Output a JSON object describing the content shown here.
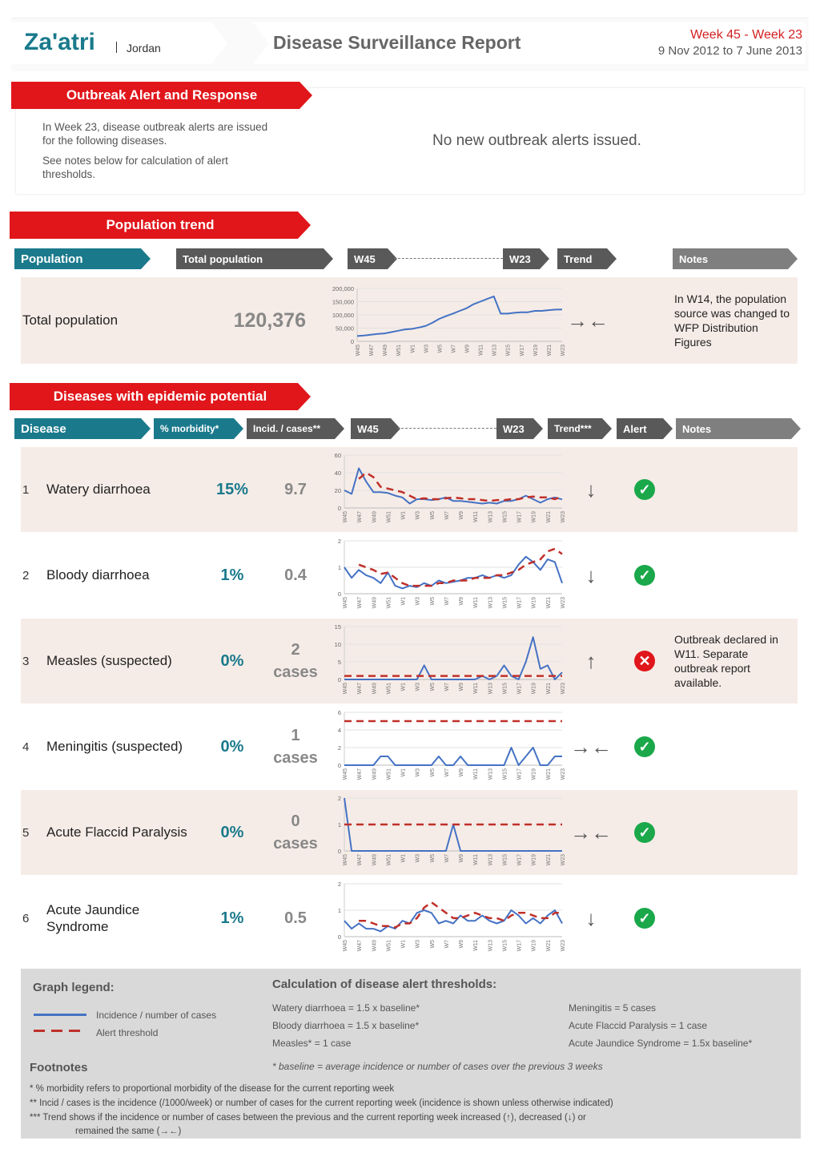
{
  "header": {
    "city": "Za'atri",
    "country": "Jordan",
    "report_title": "Disease Surveillance Report",
    "week_range": "Week 45 - Week 23",
    "date_range": "9 Nov 2012 to 7 June 2013"
  },
  "outbreak": {
    "banner": "Outbreak Alert and Response",
    "intro": "In Week 23, disease outbreak alerts are issued for the following diseases.",
    "notes_ref": "See notes below for calculation of alert thresholds.",
    "message": "No new outbreak alerts issued."
  },
  "population": {
    "banner": "Population trend",
    "tab_population": "Population",
    "tab_total": "Total population",
    "tab_w45": "W45",
    "tab_w23": "W23",
    "tab_trend": "Trend",
    "tab_notes": "Notes",
    "row_label": "Total population",
    "value": "120,376",
    "trend": "→←",
    "note": "In W14, the population source was changed to WFP Distribution Figures"
  },
  "diseases": {
    "banner": "Diseases with epidemic potential",
    "tab_disease": "Disease",
    "tab_morbidity": "% morbidity*",
    "tab_incid": "Incid. / cases**",
    "tab_w45": "W45",
    "tab_w23": "W23",
    "tab_trend": "Trend***",
    "tab_alert": "Alert",
    "tab_notes": "Notes",
    "rows": [
      {
        "num": "1",
        "name": "Watery diarrhoea",
        "morbidity": "15%",
        "incid": "9.7",
        "trend": "↓",
        "alert": "ok",
        "note": ""
      },
      {
        "num": "2",
        "name": "Bloody diarrhoea",
        "morbidity": "1%",
        "incid": "0.4",
        "trend": "↓",
        "alert": "ok",
        "note": ""
      },
      {
        "num": "3",
        "name": "Measles (suspected)",
        "morbidity": "0%",
        "incid": "2 cases",
        "trend": "↑",
        "alert": "alert",
        "note": "Outbreak declared in W11. Separate outbreak report available."
      },
      {
        "num": "4",
        "name": "Meningitis (suspected)",
        "morbidity": "0%",
        "incid": "1 cases",
        "trend": "→←",
        "alert": "ok",
        "note": ""
      },
      {
        "num": "5",
        "name": "Acute Flaccid Paralysis",
        "morbidity": "0%",
        "incid": "0 cases",
        "trend": "→←",
        "alert": "ok",
        "note": ""
      },
      {
        "num": "6",
        "name": "Acute Jaundice Syndrome",
        "morbidity": "1%",
        "incid": "0.5",
        "trend": "↓",
        "alert": "ok",
        "note": ""
      }
    ]
  },
  "legend": {
    "graph_legend": "Graph legend:",
    "incidence_label": "Incidence / number of cases",
    "alert_label": "Alert threshold",
    "calc_title": "Calculation of disease alert thresholds:",
    "calc_left": [
      "Watery diarrhoea = 1.5 x baseline*",
      "Bloody diarrhoea = 1.5 x baseline*",
      "Measles* = 1 case"
    ],
    "calc_right": [
      "Meningitis = 5 cases",
      "Acute Flaccid Paralysis = 1 case",
      "Acute Jaundice Syndrome = 1.5x baseline*"
    ],
    "baseline_note": "* baseline = average incidence or number of cases over the previous 3 weeks",
    "footnotes_title": "Footnotes",
    "fn1": "* % morbidity refers to proportional morbidity of the disease for the current reporting week",
    "fn2": "** Incid / cases is the incidence (/1000/week) or number of cases for the current reporting week (incidence is shown unless otherwise indicated)",
    "fn3": "*** Trend shows if the incidence or number of cases between the previous and the current reporting week increased (↑), decreased (↓) or",
    "fn4": "remained the same (→←)"
  },
  "colors": {
    "teal": "#1a7a8c",
    "red": "#e0161b",
    "line": "#4472c4",
    "threshold": "#c0302a"
  },
  "chart_data": [
    {
      "type": "line",
      "id": "population",
      "x": [
        "W45",
        "W46",
        "W47",
        "W48",
        "W49",
        "W50",
        "W51",
        "W52",
        "W1",
        "W2",
        "W3",
        "W4",
        "W5",
        "W6",
        "W7",
        "W8",
        "W9",
        "W10",
        "W11",
        "W12",
        "W13",
        "W14",
        "W15",
        "W16",
        "W17",
        "W18",
        "W19",
        "W20",
        "W21",
        "W22",
        "W23"
      ],
      "tick_labels": [
        "W45",
        "W47",
        "W49",
        "W51",
        "W1",
        "W3",
        "W5",
        "W7",
        "W9",
        "W11",
        "W13",
        "W15",
        "W17",
        "W19",
        "W21",
        "W23"
      ],
      "yticks": [
        "0",
        "50,000",
        "100,000",
        "150,000",
        "200,000"
      ],
      "ylim": [
        0,
        200000
      ],
      "series": [
        {
          "values": [
            20000,
            22000,
            25000,
            28000,
            30000,
            35000,
            40000,
            45000,
            47000,
            52000,
            58000,
            70000,
            85000,
            95000,
            105000,
            115000,
            125000,
            140000,
            150000,
            160000,
            170000,
            105000,
            105000,
            108000,
            110000,
            110000,
            115000,
            115000,
            118000,
            120000,
            120376
          ]
        }
      ]
    },
    {
      "type": "line",
      "id": "watery",
      "x": [
        "W45",
        "W46",
        "W47",
        "W48",
        "W49",
        "W50",
        "W51",
        "W52",
        "W1",
        "W2",
        "W3",
        "W4",
        "W5",
        "W6",
        "W7",
        "W8",
        "W9",
        "W10",
        "W11",
        "W12",
        "W13",
        "W14",
        "W15",
        "W16",
        "W17",
        "W18",
        "W19",
        "W20",
        "W21",
        "W22",
        "W23"
      ],
      "tick_labels": [
        "W45",
        "W47",
        "W49",
        "W51",
        "W1",
        "W3",
        "W5",
        "W7",
        "W9",
        "W11",
        "W13",
        "W15",
        "W17",
        "W19",
        "W21",
        "W23"
      ],
      "yticks": [
        "0",
        "20",
        "40",
        "60"
      ],
      "ylim": [
        0,
        60
      ],
      "series": [
        {
          "values": [
            20,
            16,
            45,
            30,
            18,
            18,
            17,
            14,
            12,
            5,
            10,
            10,
            9,
            10,
            12,
            8,
            8,
            7,
            6,
            5,
            6,
            5,
            8,
            8,
            10,
            14,
            10,
            6,
            10,
            12,
            9.7
          ]
        },
        {
          "values": [
            null,
            null,
            33,
            40,
            35,
            24,
            22,
            20,
            18,
            14,
            10,
            11,
            10,
            10,
            11,
            12,
            11,
            10,
            10,
            9,
            8,
            9,
            9,
            10,
            10,
            12,
            13,
            12,
            12,
            10,
            13
          ]
        }
      ]
    },
    {
      "type": "line",
      "id": "bloody",
      "x": [
        "W45",
        "W46",
        "W47",
        "W48",
        "W49",
        "W50",
        "W51",
        "W52",
        "W1",
        "W2",
        "W3",
        "W4",
        "W5",
        "W6",
        "W7",
        "W8",
        "W9",
        "W10",
        "W11",
        "W12",
        "W13",
        "W14",
        "W15",
        "W16",
        "W17",
        "W18",
        "W19",
        "W20",
        "W21",
        "W22",
        "W23"
      ],
      "tick_labels": [
        "W45",
        "W47",
        "W49",
        "W51",
        "W1",
        "W3",
        "W5",
        "W7",
        "W9",
        "W11",
        "W13",
        "W15",
        "W17",
        "W19",
        "W21",
        "W23"
      ],
      "yticks": [
        "0",
        "1",
        "2"
      ],
      "ylim": [
        0,
        2
      ],
      "series": [
        {
          "values": [
            1,
            0.6,
            0.9,
            0.7,
            0.6,
            0.4,
            0.8,
            0.3,
            0.2,
            0.3,
            0.25,
            0.4,
            0.3,
            0.5,
            0.4,
            0.45,
            0.5,
            0.6,
            0.6,
            0.7,
            0.6,
            0.7,
            0.6,
            0.7,
            1.1,
            1.4,
            1.2,
            0.9,
            1.3,
            1.2,
            0.4
          ]
        },
        {
          "values": [
            null,
            null,
            1.1,
            1.0,
            0.9,
            0.75,
            0.8,
            0.6,
            0.4,
            0.3,
            0.3,
            0.3,
            0.3,
            0.4,
            0.4,
            0.5,
            0.5,
            0.5,
            0.6,
            0.6,
            0.6,
            0.7,
            0.7,
            0.8,
            0.9,
            1.1,
            1.2,
            1.3,
            1.6,
            1.7,
            1.5
          ]
        }
      ]
    },
    {
      "type": "line",
      "id": "measles",
      "x": [
        "W45",
        "W46",
        "W47",
        "W48",
        "W49",
        "W50",
        "W51",
        "W52",
        "W1",
        "W2",
        "W3",
        "W4",
        "W5",
        "W6",
        "W7",
        "W8",
        "W9",
        "W10",
        "W11",
        "W12",
        "W13",
        "W14",
        "W15",
        "W16",
        "W17",
        "W18",
        "W19",
        "W20",
        "W21",
        "W22",
        "W23"
      ],
      "tick_labels": [
        "W45",
        "W47",
        "W49",
        "W51",
        "W1",
        "W3",
        "W5",
        "W7",
        "W9",
        "W11",
        "W13",
        "W15",
        "W17",
        "W19",
        "W21",
        "W23"
      ],
      "yticks": [
        "0",
        "5",
        "10",
        "15"
      ],
      "ylim": [
        0,
        15
      ],
      "series": [
        {
          "values": [
            0,
            0,
            0,
            0,
            0,
            0,
            0,
            0,
            0,
            0,
            0,
            4,
            0,
            0,
            0,
            0,
            0,
            0,
            0,
            1,
            0,
            1,
            4,
            1,
            0,
            5,
            12,
            3,
            4,
            0,
            2
          ]
        },
        {
          "values": [
            1,
            1,
            1,
            1,
            1,
            1,
            1,
            1,
            1,
            1,
            1,
            1,
            1,
            1,
            1,
            1,
            1,
            1,
            1,
            1,
            1,
            1,
            1,
            1,
            1,
            1,
            1,
            1,
            1,
            1,
            1
          ]
        }
      ]
    },
    {
      "type": "line",
      "id": "meningitis",
      "x": [
        "W45",
        "W46",
        "W47",
        "W48",
        "W49",
        "W50",
        "W51",
        "W52",
        "W1",
        "W2",
        "W3",
        "W4",
        "W5",
        "W6",
        "W7",
        "W8",
        "W9",
        "W10",
        "W11",
        "W12",
        "W13",
        "W14",
        "W15",
        "W16",
        "W17",
        "W18",
        "W19",
        "W20",
        "W21",
        "W22",
        "W23"
      ],
      "tick_labels": [
        "W45",
        "W47",
        "W49",
        "W51",
        "W1",
        "W3",
        "W5",
        "W7",
        "W9",
        "W11",
        "W13",
        "W15",
        "W17",
        "W19",
        "W21",
        "W23"
      ],
      "yticks": [
        "0",
        "2",
        "4",
        "6"
      ],
      "ylim": [
        0,
        6
      ],
      "series": [
        {
          "values": [
            0,
            0,
            0,
            0,
            0,
            1,
            1,
            0,
            0,
            0,
            0,
            0,
            0,
            1,
            0,
            0,
            1,
            0,
            0,
            0,
            0,
            0,
            0,
            2,
            0,
            1,
            2,
            0,
            0,
            1,
            1
          ]
        },
        {
          "values": [
            5,
            5,
            5,
            5,
            5,
            5,
            5,
            5,
            5,
            5,
            5,
            5,
            5,
            5,
            5,
            5,
            5,
            5,
            5,
            5,
            5,
            5,
            5,
            5,
            5,
            5,
            5,
            5,
            5,
            5,
            5
          ]
        }
      ]
    },
    {
      "type": "line",
      "id": "afp",
      "x": [
        "W45",
        "W46",
        "W47",
        "W48",
        "W49",
        "W50",
        "W51",
        "W52",
        "W1",
        "W2",
        "W3",
        "W4",
        "W5",
        "W6",
        "W7",
        "W8",
        "W9",
        "W10",
        "W11",
        "W12",
        "W13",
        "W14",
        "W15",
        "W16",
        "W17",
        "W18",
        "W19",
        "W20",
        "W21",
        "W22",
        "W23"
      ],
      "tick_labels": [
        "W45",
        "W47",
        "W49",
        "W51",
        "W1",
        "W3",
        "W5",
        "W7",
        "W9",
        "W11",
        "W13",
        "W15",
        "W17",
        "W19",
        "W21",
        "W23"
      ],
      "yticks": [
        "0",
        "1",
        "2"
      ],
      "ylim": [
        0,
        2
      ],
      "series": [
        {
          "values": [
            2,
            0,
            0,
            0,
            0,
            0,
            0,
            0,
            0,
            0,
            0,
            0,
            0,
            0,
            0,
            1,
            0,
            0,
            0,
            0,
            0,
            0,
            0,
            0,
            0,
            0,
            0,
            0,
            0,
            0,
            0
          ]
        },
        {
          "values": [
            1,
            1,
            1,
            1,
            1,
            1,
            1,
            1,
            1,
            1,
            1,
            1,
            1,
            1,
            1,
            1,
            1,
            1,
            1,
            1,
            1,
            1,
            1,
            1,
            1,
            1,
            1,
            1,
            1,
            1,
            1
          ]
        }
      ]
    },
    {
      "type": "line",
      "id": "jaundice",
      "x": [
        "W45",
        "W46",
        "W47",
        "W48",
        "W49",
        "W50",
        "W51",
        "W52",
        "W1",
        "W2",
        "W3",
        "W4",
        "W5",
        "W6",
        "W7",
        "W8",
        "W9",
        "W10",
        "W11",
        "W12",
        "W13",
        "W14",
        "W15",
        "W16",
        "W17",
        "W18",
        "W19",
        "W20",
        "W21",
        "W22",
        "W23"
      ],
      "tick_labels": [
        "W45",
        "W47",
        "W49",
        "W51",
        "W1",
        "W3",
        "W5",
        "W7",
        "W9",
        "W11",
        "W13",
        "W15",
        "W17",
        "W19",
        "W21",
        "W23"
      ],
      "yticks": [
        "0",
        "1",
        "2"
      ],
      "ylim": [
        0,
        2
      ],
      "series": [
        {
          "values": [
            0.6,
            0.3,
            0.5,
            0.3,
            0.3,
            0.2,
            0.4,
            0.3,
            0.6,
            0.5,
            0.9,
            1.0,
            0.9,
            0.5,
            0.6,
            0.5,
            0.8,
            0.6,
            0.6,
            0.8,
            0.6,
            0.5,
            0.6,
            1.0,
            0.8,
            0.5,
            0.7,
            0.5,
            0.8,
            1.0,
            0.5
          ]
        },
        {
          "values": [
            null,
            null,
            0.6,
            0.6,
            0.5,
            0.4,
            0.4,
            0.35,
            0.5,
            0.5,
            0.7,
            1.1,
            1.3,
            1.1,
            0.9,
            0.7,
            0.7,
            0.8,
            0.9,
            0.8,
            0.7,
            0.7,
            0.6,
            0.8,
            0.9,
            0.9,
            0.8,
            0.7,
            0.7,
            0.9,
            0.9
          ]
        }
      ]
    }
  ]
}
